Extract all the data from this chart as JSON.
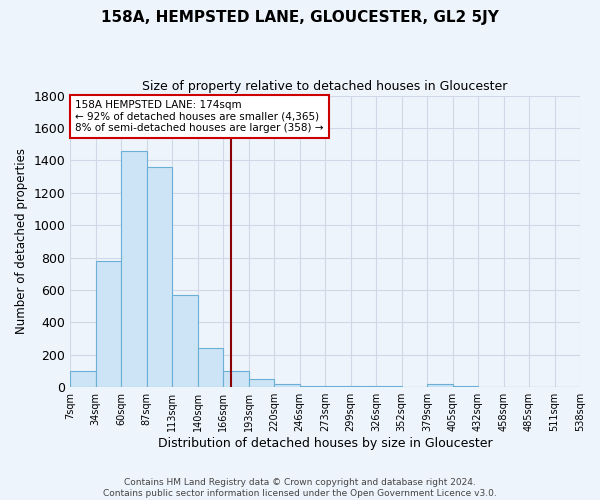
{
  "title": "158A, HEMPSTED LANE, GLOUCESTER, GL2 5JY",
  "subtitle": "Size of property relative to detached houses in Gloucester",
  "xlabel": "Distribution of detached houses by size in Gloucester",
  "ylabel": "Number of detached properties",
  "footer1": "Contains HM Land Registry data © Crown copyright and database right 2024.",
  "footer2": "Contains public sector information licensed under the Open Government Licence v3.0.",
  "annotation_line1": "158A HEMPSTED LANE: 174sqm",
  "annotation_line2": "← 92% of detached houses are smaller (4,365)",
  "annotation_line3": "8% of semi-detached houses are larger (358) →",
  "bin_labels": [
    "7sqm",
    "34sqm",
    "60sqm",
    "87sqm",
    "113sqm",
    "140sqm",
    "166sqm",
    "193sqm",
    "220sqm",
    "246sqm",
    "273sqm",
    "299sqm",
    "326sqm",
    "352sqm",
    "379sqm",
    "405sqm",
    "432sqm",
    "458sqm",
    "485sqm",
    "511sqm",
    "538sqm"
  ],
  "bar_heights": [
    100,
    780,
    1460,
    1360,
    570,
    240,
    100,
    50,
    20,
    10,
    5,
    5,
    5,
    0,
    20,
    5,
    0,
    0,
    0,
    0
  ],
  "bar_color": "#cce4f5",
  "bar_edge_color": "#6baed6",
  "bg_color": "#eef4fb",
  "grid_color": "#d0d8e8",
  "vline_x": 6.31,
  "vline_color": "#8b0000",
  "ylim": [
    0,
    1800
  ],
  "yticks": [
    0,
    200,
    400,
    600,
    800,
    1000,
    1200,
    1400,
    1600,
    1800
  ]
}
